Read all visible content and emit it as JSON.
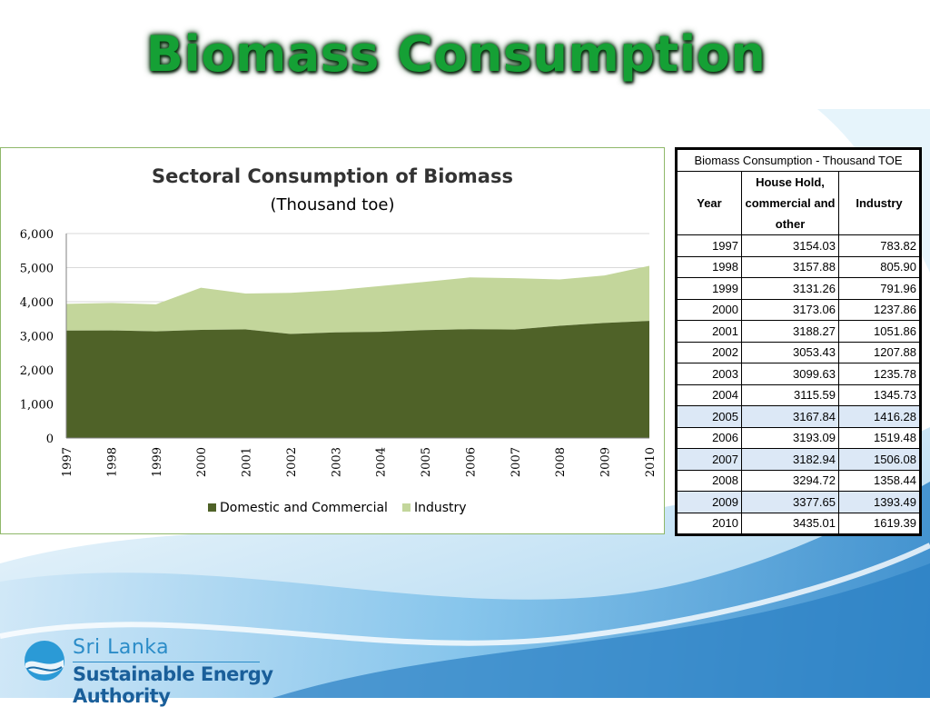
{
  "slide": {
    "title": "Biomass Consumption"
  },
  "chart_data": {
    "type": "area",
    "stacked": true,
    "title": "Sectoral Consumption of Biomass",
    "subtitle": "(Thousand  toe)",
    "xlabel": "",
    "ylabel": "",
    "x": [
      "1997",
      "1998",
      "1999",
      "2000",
      "2001",
      "2002",
      "2003",
      "2004",
      "2005",
      "2006",
      "2007",
      "2008",
      "2009",
      "2010"
    ],
    "ylim": [
      0,
      6000
    ],
    "yticks": [
      0,
      1000,
      2000,
      3000,
      4000,
      5000,
      6000
    ],
    "ytick_labels": [
      "0",
      "1,000",
      "2,000",
      "3,000",
      "4,000",
      "5,000",
      "6,000"
    ],
    "grid": true,
    "legend_position": "bottom",
    "series": [
      {
        "name": "Domestic and Commercial",
        "color": "#4f6228",
        "values": [
          3154.03,
          3157.88,
          3131.26,
          3173.06,
          3188.27,
          3053.43,
          3099.63,
          3115.59,
          3167.84,
          3193.09,
          3182.94,
          3294.72,
          3377.65,
          3435.01
        ]
      },
      {
        "name": "Industry",
        "color": "#c3d69b",
        "values": [
          783.82,
          805.9,
          791.96,
          1237.86,
          1051.86,
          1207.88,
          1235.78,
          1345.73,
          1416.28,
          1519.48,
          1506.08,
          1358.44,
          1393.49,
          1619.39
        ]
      }
    ]
  },
  "table": {
    "caption": "Biomass Consumption - Thousand TOE",
    "headers": [
      "Year",
      "House Hold, commercial and other",
      "Industry"
    ],
    "rows": [
      [
        "1997",
        "3154.03",
        "783.82"
      ],
      [
        "1998",
        "3157.88",
        "805.90"
      ],
      [
        "1999",
        "3131.26",
        "791.96"
      ],
      [
        "2000",
        "3173.06",
        "1237.86"
      ],
      [
        "2001",
        "3188.27",
        "1051.86"
      ],
      [
        "2002",
        "3053.43",
        "1207.88"
      ],
      [
        "2003",
        "3099.63",
        "1235.78"
      ],
      [
        "2004",
        "3115.59",
        "1345.73"
      ],
      [
        "2005",
        "3167.84",
        "1416.28"
      ],
      [
        "2006",
        "3193.09",
        "1519.48"
      ],
      [
        "2007",
        "3182.94",
        "1506.08"
      ],
      [
        "2008",
        "3294.72",
        "1358.44"
      ],
      [
        "2009",
        "3377.65",
        "1393.49"
      ],
      [
        "2010",
        "3435.01",
        "1619.39"
      ]
    ]
  },
  "logo": {
    "line1": "Sri Lanka",
    "line2": "Sustainable Energy Authority",
    "icon": "globe-wave-icon"
  }
}
